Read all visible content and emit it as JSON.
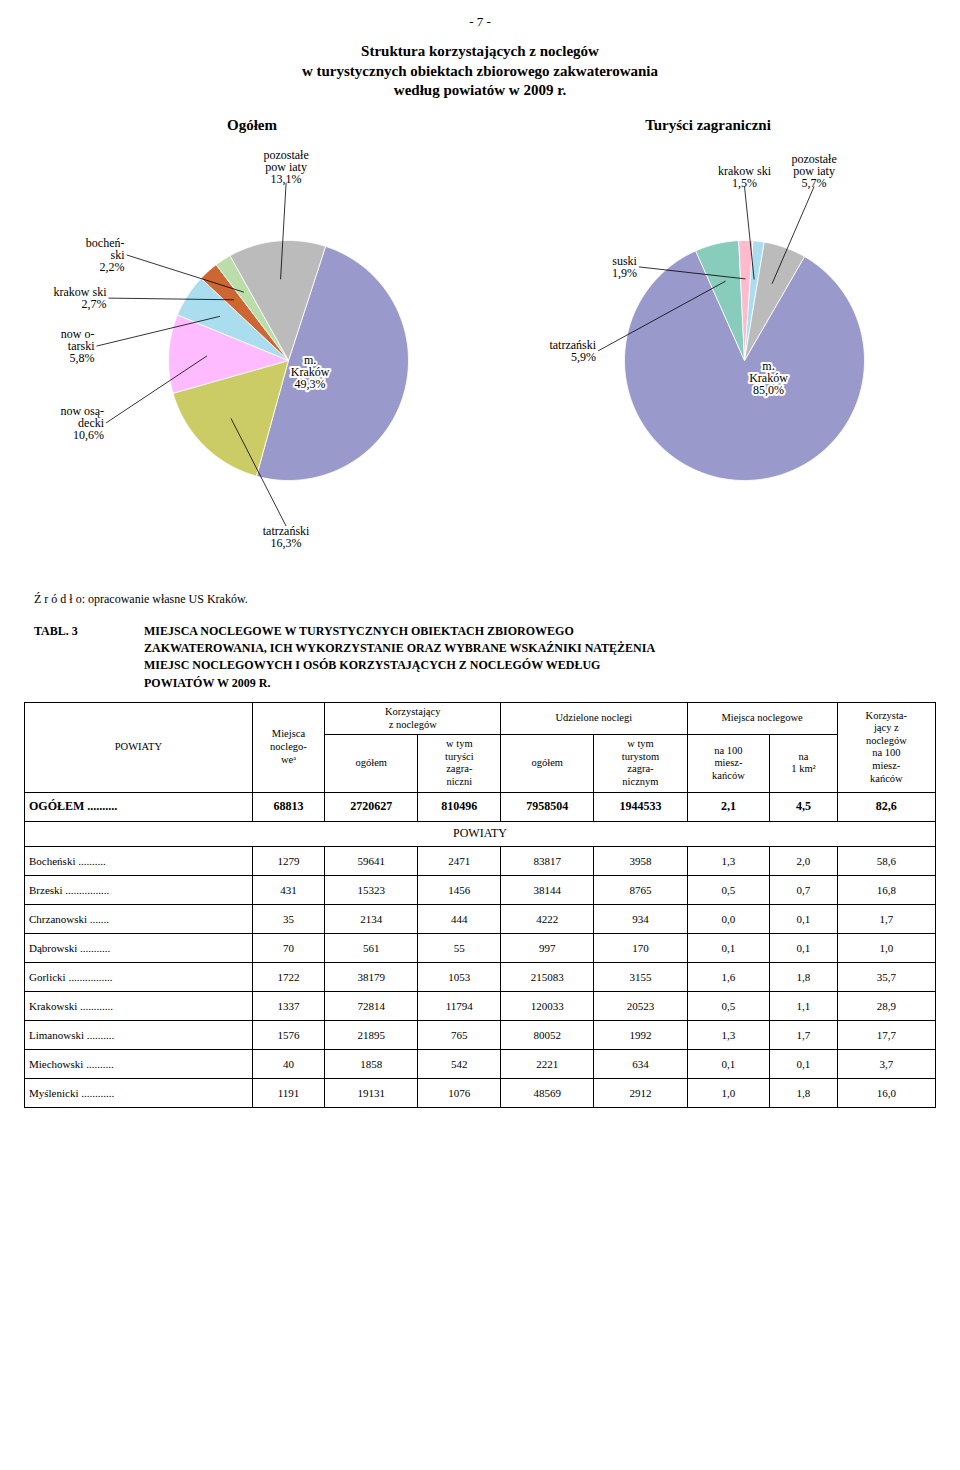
{
  "page_number": "- 7 -",
  "title": "Struktura korzystających z noclegów\nw turystycznych obiektach zbiorowego zakwaterowania\nwedług powiatów w 2009 r.",
  "source": "Ź r ó d ł o: opracowanie własne US Kraków.",
  "chart_data": [
    {
      "type": "pie",
      "title": "Ogółem",
      "categories": [
        "m.\nKraków",
        "tatrzański",
        "now osą-\ndecki",
        "now o-\ntarski",
        "krakow ski",
        "bocheń-\nski",
        "pozostałe\npow iaty"
      ],
      "values": [
        49.3,
        16.3,
        10.6,
        5.8,
        2.7,
        2.2,
        13.1
      ],
      "value_labels": [
        "49,3%",
        "16,3%",
        "10,6%",
        "5,8%",
        "2,7%",
        "2,2%",
        "13,1%"
      ],
      "colors": [
        "#9999cc",
        "#cccc66",
        "#ffbbff",
        "#aaddee",
        "#cc6633",
        "#bbddaa",
        "#bbbbbb"
      ],
      "data_labels": true
    },
    {
      "type": "pie",
      "title": "Turyści zagraniczni",
      "categories": [
        "m.\nKraków",
        "tatrzański",
        "suski",
        "krakow ski",
        "pozostałe\npow iaty"
      ],
      "values": [
        85.0,
        5.9,
        1.9,
        1.5,
        5.7
      ],
      "value_labels": [
        "85,0%",
        "5,9%",
        "1,9%",
        "1,5%",
        "5,7%"
      ],
      "colors": [
        "#9999cc",
        "#88ccbb",
        "#ffbbcc",
        "#aaddee",
        "#bbbbbb"
      ],
      "data_labels": true
    },
    {
      "type": "table",
      "label": "TABL. 3",
      "title": "MIEJSCA NOCLEGOWE W TURYSTYCZNYCH OBIEKTACH ZBIOROWEGO\nZAKWATEROWANIA, ICH WYKORZYSTANIE ORAZ WYBRANE WSKAŹNIKI NATĘŻENIA\nMIEJSC NOCLEGOWYCH I OSÓB KORZYSTAJĄCYCH Z NOCLEGÓW WEDŁUG\nPOWIATÓW W 2009 R.",
      "header": [
        {
          "label": "POWIATY"
        },
        {
          "label": "Miejsca\nnoclego-\nweᵃ"
        },
        {
          "label": "Korzystający\nz noclegów",
          "columns": [
            "ogółem",
            "w tym\nturyści\nzagra-\nniczni"
          ]
        },
        {
          "label": "Udzielone noclegi",
          "columns": [
            "ogółem",
            "w tym\nturystom\nzagra-\nnicznym"
          ]
        },
        {
          "label": "Miejsca noclegowe",
          "columns": [
            "na 100\nmiesz-\nkańców",
            "na\n1 km²"
          ]
        },
        {
          "label": "Korzysta-\njący z\nnoclegów\nna 100\nmiesz-\nkańców"
        }
      ],
      "total_row": [
        "OGÓŁEM ..........",
        "68813",
        "2720627",
        "810496",
        "7958504",
        "1944533",
        "2,1",
        "4,5",
        "82,6"
      ],
      "section_label": "POWIATY",
      "rows": [
        [
          "Bocheński ..........",
          "1279",
          "59641",
          "2471",
          "83817",
          "3958",
          "1,3",
          "2,0",
          "58,6"
        ],
        [
          "Brzeski ................",
          "431",
          "15323",
          "1456",
          "38144",
          "8765",
          "0,5",
          "0,7",
          "16,8"
        ],
        [
          "Chrzanowski .......",
          "35",
          "2134",
          "444",
          "4222",
          "934",
          "0,0",
          "0,1",
          "1,7"
        ],
        [
          "Dąbrowski ...........",
          "70",
          "561",
          "55",
          "997",
          "170",
          "0,1",
          "0,1",
          "1,0"
        ],
        [
          "Gorlicki ................",
          "1722",
          "38179",
          "1053",
          "215083",
          "3155",
          "1,6",
          "1,8",
          "35,7"
        ],
        [
          "Krakowski ............",
          "1337",
          "72814",
          "11794",
          "120033",
          "20523",
          "0,5",
          "1,1",
          "28,9"
        ],
        [
          "Limanowski ..........",
          "1576",
          "21895",
          "765",
          "80052",
          "1992",
          "1,3",
          "1,7",
          "17,7"
        ],
        [
          "Miechowski ..........",
          "40",
          "1858",
          "542",
          "2221",
          "634",
          "0,1",
          "0,1",
          "3,7"
        ],
        [
          "Myślenicki ............",
          "1191",
          "19131",
          "1076",
          "48569",
          "2912",
          "1,0",
          "1,8",
          "16,0"
        ]
      ]
    }
  ]
}
